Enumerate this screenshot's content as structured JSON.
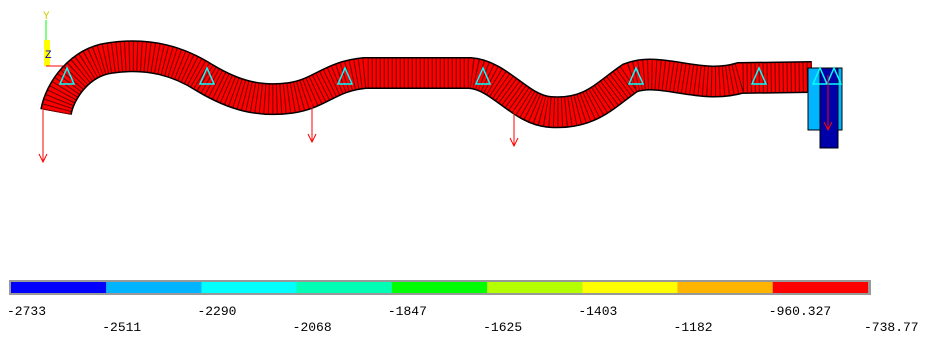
{
  "triad": {
    "y_label": "Y",
    "z_label": "Z"
  },
  "legend": {
    "colors": [
      "#0000ff",
      "#00b4ff",
      "#00ffff",
      "#00ffb4",
      "#00ff00",
      "#b4ff00",
      "#ffff00",
      "#ffb400",
      "#ff0000"
    ],
    "labels": [
      "-2733",
      "-2511",
      "-2290",
      "-2068",
      "-1847",
      "-1625",
      "-1403",
      "-1182",
      "-960.327",
      "-738.77"
    ]
  }
}
